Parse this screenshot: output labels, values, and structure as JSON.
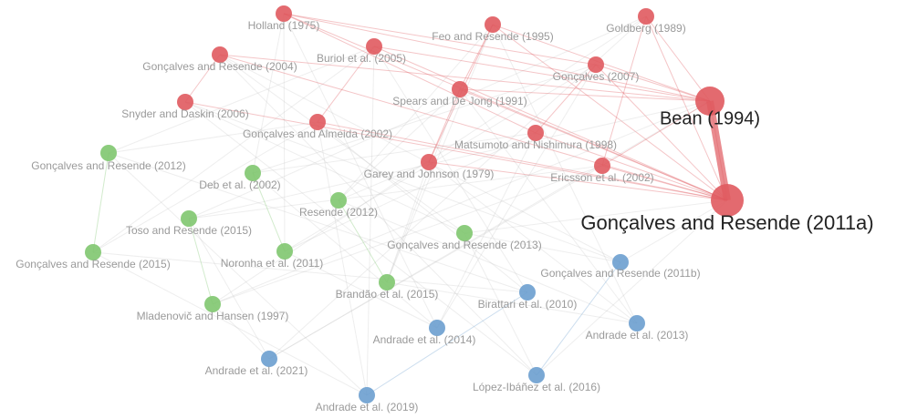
{
  "nodes": [
    {
      "label": "Holland (1975)",
      "color": "#e05a5f"
    },
    {
      "label": "Feo and Resende (1995)",
      "color": "#e05a5f"
    },
    {
      "label": "Goldberg (1989)",
      "color": "#e05a5f"
    },
    {
      "label": "Gonçalves and Resende (2004)",
      "color": "#e05a5f"
    },
    {
      "label": "Buriol et al. (2005)",
      "color": "#e05a5f"
    },
    {
      "label": "Gonçalves (2007)",
      "color": "#e05a5f"
    },
    {
      "label": "Spears and De Jong (1991)",
      "color": "#e05a5f"
    },
    {
      "label": "Bean (1994)",
      "color": "#e05a5f"
    },
    {
      "label": "Snyder and Daskin (2006)",
      "color": "#e05a5f"
    },
    {
      "label": "Gonçalves and Almeida (2002)",
      "color": "#e05a5f"
    },
    {
      "label": "Matsumoto and Nishimura (1998)",
      "color": "#e05a5f"
    },
    {
      "label": "Garey and Johnson (1979)",
      "color": "#e05a5f"
    },
    {
      "label": "Ericsson et al. (2002)",
      "color": "#e05a5f"
    },
    {
      "label": "Gonçalves and Resende (2011a)",
      "color": "#e05a5f"
    },
    {
      "label": "Gonçalves and Resende (2012)",
      "color": "#7fc66f"
    },
    {
      "label": "Deb et al. (2002)",
      "color": "#7fc66f"
    },
    {
      "label": "Resende (2012)",
      "color": "#7fc66f"
    },
    {
      "label": "Toso and Resende (2015)",
      "color": "#7fc66f"
    },
    {
      "label": "Gonçalves and Resende (2013)",
      "color": "#7fc66f"
    },
    {
      "label": "Gonçalves and Resende (2015)",
      "color": "#7fc66f"
    },
    {
      "label": "Noronha et al. (2011)",
      "color": "#7fc66f"
    },
    {
      "label": "Brandão et al. (2015)",
      "color": "#7fc66f"
    },
    {
      "label": "Mladenovič and Hansen (1997)",
      "color": "#7fc66f"
    },
    {
      "label": "Gonçalves and Resende (2011b)",
      "color": "#6b9fcf"
    },
    {
      "label": "Birattari et al. (2010)",
      "color": "#6b9fcf"
    },
    {
      "label": "Andrade et al. (2014)",
      "color": "#6b9fcf"
    },
    {
      "label": "Andrade et al. (2013)",
      "color": "#6b9fcf"
    },
    {
      "label": "Andrade et al. (2021)",
      "color": "#6b9fcf"
    },
    {
      "label": "López-Ibáñez et al. (2016)",
      "color": "#6b9fcf"
    },
    {
      "label": "Andrade et al. (2019)",
      "color": "#6b9fcf"
    }
  ]
}
